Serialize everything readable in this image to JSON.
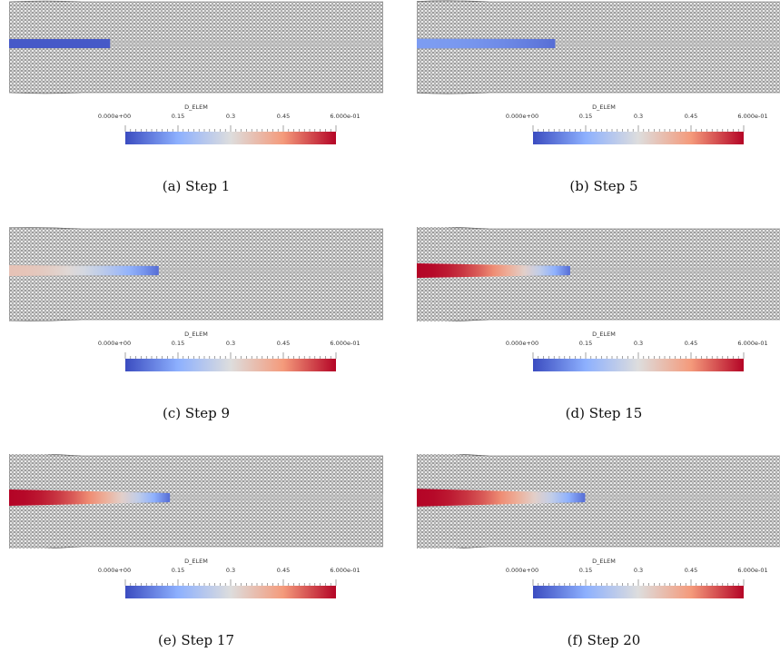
{
  "colors": {
    "cmap": [
      "#3b4cc0",
      "#8db0fe",
      "#dddddd",
      "#f49a7b",
      "#b40426"
    ],
    "mesh_fill": "#e9e9e9",
    "mesh_stroke": "#444444"
  },
  "legend": {
    "title": "D_ELEM",
    "min_label": "0.000e+00",
    "max_label": "6.000e-01",
    "ticks": [
      "0.15",
      "0.3",
      "0.45"
    ]
  },
  "panels": [
    {
      "caption": "(a) Step 1",
      "damage": [
        {
          "x0": 0,
          "x1": 0.27,
          "v0": 0.02,
          "v1": 0.02
        }
      ],
      "widen": 0
    },
    {
      "caption": "(b) Step 5",
      "damage": [
        {
          "x0": 0,
          "x1": 0.37,
          "v0": 0.12,
          "v1": 0.05
        }
      ],
      "widen": 0.1
    },
    {
      "caption": "(c) Step 9",
      "damage": [
        {
          "x0": 0,
          "x1": 0.4,
          "v0": 0.36,
          "v1": 0.05
        }
      ],
      "widen": 0.25
    },
    {
      "caption": "(d) Step 15",
      "damage": [
        {
          "x0": 0,
          "x1": 0.41,
          "v0": 0.6,
          "v1": 0.05
        }
      ],
      "widen": 0.75
    },
    {
      "caption": "(e) Step 17",
      "damage": [
        {
          "x0": 0,
          "x1": 0.43,
          "v0": 0.6,
          "v1": 0.05
        }
      ],
      "widen": 1
    },
    {
      "caption": "(f) Step 20",
      "damage": [
        {
          "x0": 0,
          "x1": 0.45,
          "v0": 0.6,
          "v1": 0.05
        }
      ],
      "widen": 1.2
    }
  ]
}
